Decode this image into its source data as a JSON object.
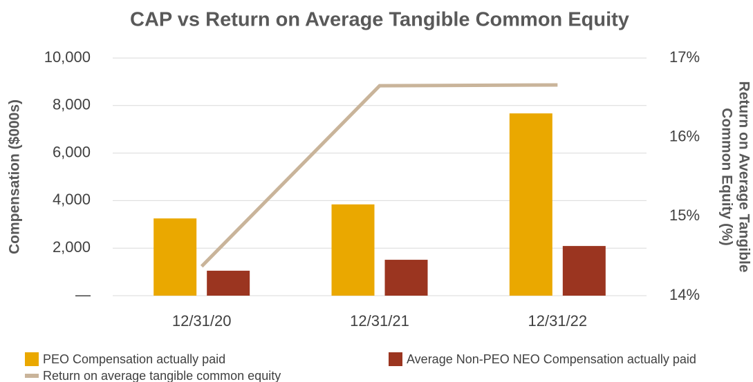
{
  "chart_data": {
    "type": "bar",
    "title": "CAP vs Return on Average Tangible Common Equity",
    "ylabel": "Compensation ($000s)",
    "y2label": [
      "Return on Average Tangible",
      "Common Equity (%)"
    ],
    "categories": [
      "12/31/20",
      "12/31/21",
      "12/31/22"
    ],
    "series": [
      {
        "name": "PEO Compensation actually paid",
        "color": "#eaa800",
        "values": [
          3250,
          3840,
          7670
        ]
      },
      {
        "name": "Average Non-PEO NEO Compensation actually paid",
        "color": "#9b3520",
        "values": [
          1050,
          1510,
          2090
        ]
      },
      {
        "name": "Return on average tangible common equity",
        "color": "#c9b49a",
        "type": "line",
        "axis": "y2",
        "values": [
          14.37,
          16.65,
          16.66
        ]
      }
    ],
    "ylim": [
      0,
      10000
    ],
    "yticks": [
      {
        "value": 0,
        "label": "—"
      },
      {
        "value": 2000,
        "label": "2,000"
      },
      {
        "value": 4000,
        "label": "4,000"
      },
      {
        "value": 6000,
        "label": "6,000"
      },
      {
        "value": 8000,
        "label": "8,000"
      },
      {
        "value": 10000,
        "label": "10,000"
      }
    ],
    "y2lim": [
      14,
      17
    ],
    "y2ticks": [
      {
        "value": 14,
        "label": "14%"
      },
      {
        "value": 15,
        "label": "15%"
      },
      {
        "value": 16,
        "label": "16%"
      },
      {
        "value": 17,
        "label": "17%"
      }
    ],
    "grid": true
  }
}
